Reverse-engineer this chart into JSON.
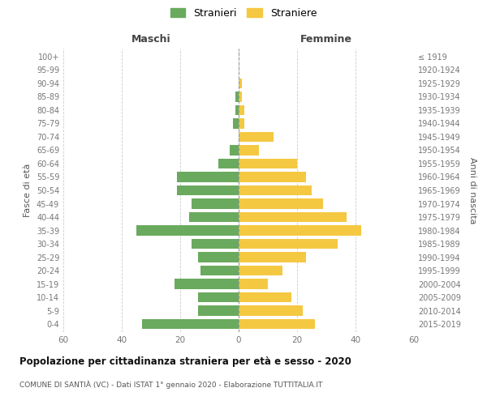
{
  "age_groups": [
    "0-4",
    "5-9",
    "10-14",
    "15-19",
    "20-24",
    "25-29",
    "30-34",
    "35-39",
    "40-44",
    "45-49",
    "50-54",
    "55-59",
    "60-64",
    "65-69",
    "70-74",
    "75-79",
    "80-84",
    "85-89",
    "90-94",
    "95-99",
    "100+"
  ],
  "birth_years": [
    "2015-2019",
    "2010-2014",
    "2005-2009",
    "2000-2004",
    "1995-1999",
    "1990-1994",
    "1985-1989",
    "1980-1984",
    "1975-1979",
    "1970-1974",
    "1965-1969",
    "1960-1964",
    "1955-1959",
    "1950-1954",
    "1945-1949",
    "1940-1944",
    "1935-1939",
    "1930-1934",
    "1925-1929",
    "1920-1924",
    "≤ 1919"
  ],
  "maschi": [
    33,
    14,
    14,
    22,
    13,
    14,
    16,
    35,
    17,
    16,
    21,
    21,
    7,
    3,
    0,
    2,
    1,
    1,
    0,
    0,
    0
  ],
  "femmine": [
    26,
    22,
    18,
    10,
    15,
    23,
    34,
    42,
    37,
    29,
    25,
    23,
    20,
    7,
    12,
    2,
    2,
    1,
    1,
    0,
    0
  ],
  "maschi_color": "#6aaa5e",
  "femmine_color": "#f5c842",
  "title": "Popolazione per cittadinanza straniera per età e sesso - 2020",
  "subtitle": "COMUNE DI SANTIÀ (VC) - Dati ISTAT 1° gennaio 2020 - Elaborazione TUTTITALIA.IT",
  "xlabel_left": "Maschi",
  "xlabel_right": "Femmine",
  "ylabel_left": "Fasce di età",
  "ylabel_right": "Anni di nascita",
  "legend_maschi": "Stranieri",
  "legend_femmine": "Straniere",
  "xlim": 60,
  "background_color": "#ffffff",
  "grid_color": "#cccccc",
  "bar_height": 0.75
}
